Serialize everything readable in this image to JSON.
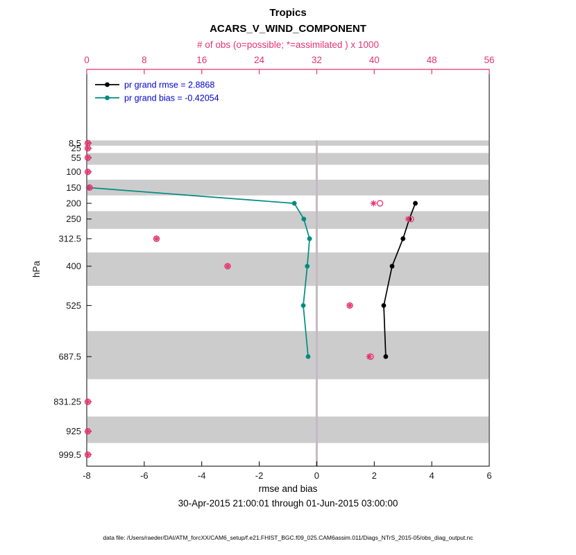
{
  "header": {
    "region": "Tropics",
    "variable": "ACARS_V_WIND_COMPONENT"
  },
  "footer": {
    "date_range": "30-Apr-2015 21:00:01 through 01-Jun-2015 03:00:00",
    "data_file": "data file: /Users/raeder/DAI/ATM_forcXX/CAM6_setup/f.e21.FHIST_BGC.f09_025.CAM6assim.011/Diags_NTrS_2015-05/obs_diag_output.nc"
  },
  "legend": {
    "rmse_label": "pr grand rmse = 2.8868",
    "bias_label": "pr grand bias = -0.42054"
  },
  "colors": {
    "obs": "#e5336e",
    "rmse": "#000000",
    "bias": "#008b80",
    "legend_text": "#0000cc",
    "band": "#cccccc",
    "zero_line": "#c4bac2",
    "tick_text": "#1a1a1a"
  },
  "chart_data": {
    "type": "line",
    "title": "Tropics ACARS_V_WIND_COMPONENT",
    "xlabel": "rmse and bias",
    "ylabel": "hPa",
    "top_xlabel": "# of obs (o=possible; *=assimilated ) x 1000",
    "x_range": [
      -8,
      6
    ],
    "x_ticks": [
      -8,
      -6,
      -4,
      -2,
      0,
      2,
      4,
      6
    ],
    "top_axis": {
      "range": [
        0,
        56
      ],
      "ticks": [
        0,
        8,
        16,
        24,
        32,
        40,
        48,
        56
      ],
      "units": "x 1000"
    },
    "y_levels_hpa": [
      8.5,
      25,
      55,
      100,
      150,
      200,
      250,
      312.5,
      400,
      525,
      687.5,
      831.25,
      925,
      999.5
    ],
    "y_tick_labels": [
      "8.5",
      "25",
      "55",
      "100",
      "150",
      "200",
      "250",
      "312.5",
      "400",
      "525",
      "687.5",
      "831.25",
      "925",
      "999.5"
    ],
    "y_bottom_hpa": 1036,
    "grand": {
      "rmse": 2.8868,
      "bias": -0.42054
    },
    "series": [
      {
        "name": "pr grand rmse",
        "type": "line",
        "axis": "bottom",
        "color_key": "rmse",
        "values": [
          null,
          null,
          null,
          null,
          null,
          3.43,
          3.22,
          3.0,
          2.62,
          2.33,
          2.4,
          null,
          null,
          null
        ]
      },
      {
        "name": "pr grand bias",
        "type": "line",
        "axis": "bottom",
        "color_key": "bias",
        "values": [
          null,
          null,
          null,
          null,
          -7.95,
          -0.78,
          -0.45,
          -0.25,
          -0.33,
          -0.47,
          -0.3,
          null,
          null,
          null
        ]
      },
      {
        "name": "N possible (o)",
        "type": "markers",
        "marker": "circle",
        "axis": "top",
        "color_key": "obs",
        "values": [
          0.15,
          0.15,
          0.15,
          0.15,
          0.4,
          40.8,
          45.1,
          9.7,
          19.6,
          36.6,
          39.5,
          0.15,
          0.15,
          0.15
        ]
      },
      {
        "name": "N assimilated (*)",
        "type": "markers",
        "marker": "asterisk",
        "axis": "top",
        "color_key": "obs",
        "values": [
          0.15,
          0.15,
          0.15,
          0.15,
          0.4,
          39.9,
          44.7,
          9.7,
          19.6,
          36.6,
          39.3,
          0.15,
          0.15,
          0.15
        ]
      }
    ]
  }
}
